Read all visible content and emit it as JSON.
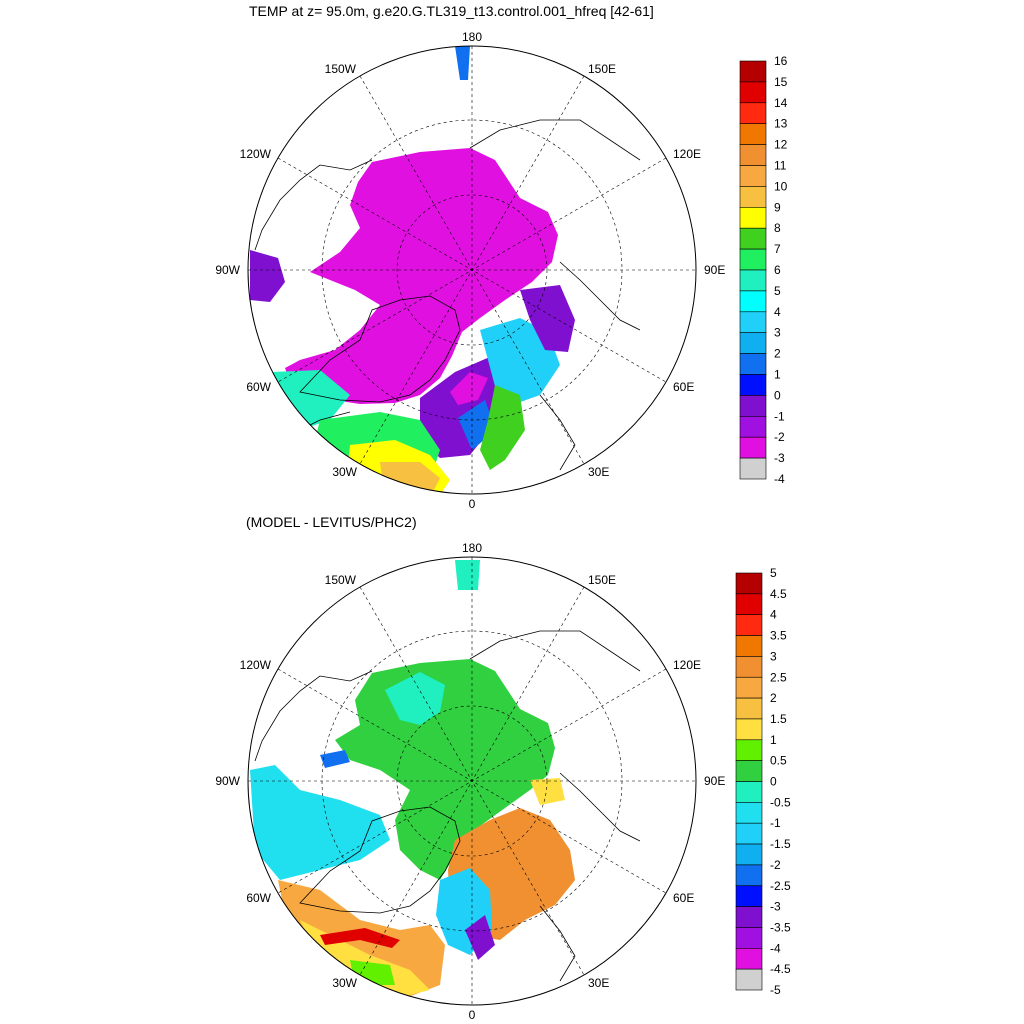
{
  "panels": [
    {
      "title": "TEMP at z=  95.0m, g.e20.G.TL319_t13.control.001_hfreq [42-61]",
      "longitude_labels": {
        "top": "180",
        "bottom": "0",
        "left": "90W",
        "right": "90E",
        "upper_left": "150W",
        "upper_right": "150E",
        "mid_upper_left": "120W",
        "mid_upper_right": "120E",
        "mid_lower_left": "60W",
        "mid_lower_right": "60E",
        "lower_left": "30W",
        "lower_right": "30E"
      },
      "colorbar": {
        "labels": [
          "16",
          "15",
          "14",
          "13",
          "12",
          "11",
          "10",
          "9",
          "8",
          "7",
          "6",
          "5",
          "4",
          "3",
          "2",
          "1",
          "0",
          "-1",
          "-2",
          "-3",
          "-4"
        ],
        "colors": [
          "#b40000",
          "#e00000",
          "#ff2a10",
          "#f07800",
          "#f09030",
          "#f8a840",
          "#f8c040",
          "#ffff00",
          "#40d020",
          "#20f060",
          "#20f0c0",
          "#00ffff",
          "#20d0f8",
          "#10b0f0",
          "#1070f0",
          "#0010ff",
          "#8010d0",
          "#a010e0",
          "#e010e0",
          "#d0d0d0",
          "#707070"
        ]
      }
    },
    {
      "title": "(MODEL - LEVITUS/PHC2)",
      "longitude_labels": {
        "top": "180",
        "bottom": "0",
        "left": "90W",
        "right": "90E",
        "upper_left": "150W",
        "upper_right": "150E",
        "mid_upper_left": "120W",
        "mid_upper_right": "120E",
        "mid_lower_left": "60W",
        "mid_lower_right": "60E",
        "lower_left": "30W",
        "lower_right": "30E"
      },
      "colorbar": {
        "labels": [
          "5",
          "4.5",
          "4",
          "3.5",
          "3",
          "2.5",
          "2",
          "1.5",
          "1",
          "0.5",
          "0",
          "-0.5",
          "-1",
          "-1.5",
          "-2",
          "-2.5",
          "-3",
          "-3.5",
          "-4",
          "-4.5",
          "-5"
        ],
        "colors": [
          "#b40000",
          "#e00000",
          "#ff2a10",
          "#f07800",
          "#f09030",
          "#f8a840",
          "#f8c040",
          "#ffe040",
          "#60f000",
          "#30d040",
          "#20f0c0",
          "#20e0f0",
          "#20d0f8",
          "#10b0f0",
          "#1070f0",
          "#0010ff",
          "#8010d0",
          "#a010e0",
          "#e010e0",
          "#d0d0d0",
          "#707070"
        ]
      }
    }
  ]
}
